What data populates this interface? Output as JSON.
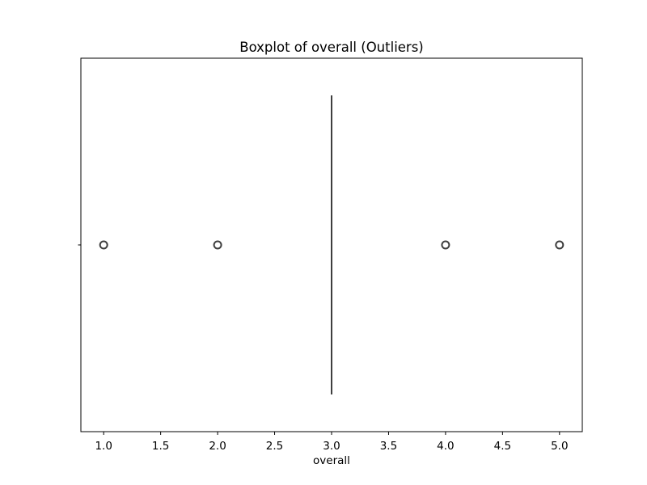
{
  "chart_data": {
    "type": "boxplot",
    "title": "Boxplot of overall (Outliers)",
    "xlabel": "overall",
    "ylabel": "",
    "orientation": "horizontal",
    "xlim": [
      0.8,
      5.2
    ],
    "x_ticks": [
      1.0,
      1.5,
      2.0,
      2.5,
      3.0,
      3.5,
      4.0,
      4.5,
      5.0
    ],
    "x_tick_labels": [
      "1.0",
      "1.5",
      "2.0",
      "2.5",
      "3.0",
      "3.5",
      "4.0",
      "4.5",
      "5.0"
    ],
    "series": [
      {
        "min": 3.0,
        "q1": 3.0,
        "median": 3.0,
        "q3": 3.0,
        "max": 3.0,
        "outliers": [
          1.0,
          2.0,
          4.0,
          5.0
        ]
      }
    ],
    "grid": false,
    "legend": "none",
    "colors": {
      "box_line": "#3f3f3f",
      "outlier_edge": "#3f3f3f",
      "axes": "#000000",
      "background": "#ffffff"
    }
  }
}
